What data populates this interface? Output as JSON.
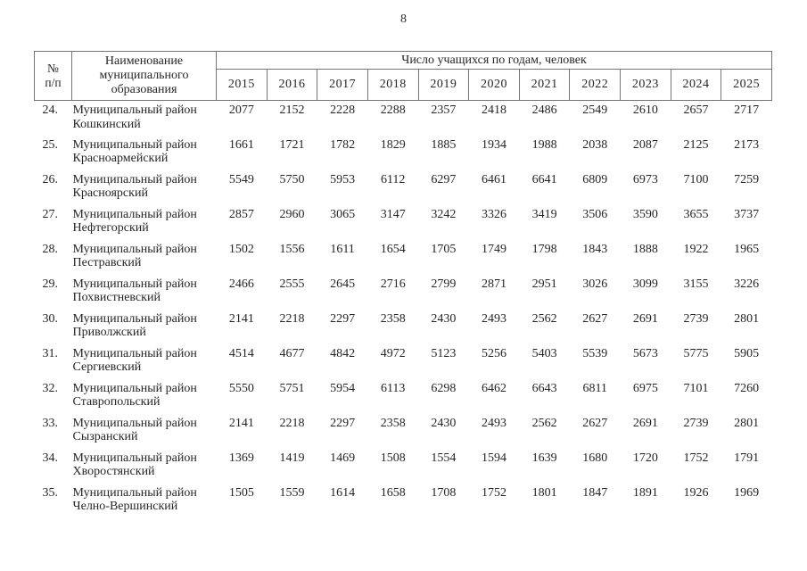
{
  "page": {
    "number": "8"
  },
  "table": {
    "header": {
      "col_num": "№\nп/п",
      "col_name": "Наименование муниципального образования",
      "col_group": "Число учащихся по годам, человек",
      "years": [
        "2015",
        "2016",
        "2017",
        "2018",
        "2019",
        "2020",
        "2021",
        "2022",
        "2023",
        "2024",
        "2025"
      ]
    },
    "rows": [
      {
        "num": "24.",
        "name": "Муниципальный район\nКошкинский",
        "values": [
          2077,
          2152,
          2228,
          2288,
          2357,
          2418,
          2486,
          2549,
          2610,
          2657,
          2717
        ]
      },
      {
        "num": "25.",
        "name": "Муниципальный район\nКрасноармейский",
        "values": [
          1661,
          1721,
          1782,
          1829,
          1885,
          1934,
          1988,
          2038,
          2087,
          2125,
          2173
        ]
      },
      {
        "num": "26.",
        "name": "Муниципальный район\nКрасноярский",
        "values": [
          5549,
          5750,
          5953,
          6112,
          6297,
          6461,
          6641,
          6809,
          6973,
          7100,
          7259
        ]
      },
      {
        "num": "27.",
        "name": "Муниципальный район\nНефтегорский",
        "values": [
          2857,
          2960,
          3065,
          3147,
          3242,
          3326,
          3419,
          3506,
          3590,
          3655,
          3737
        ]
      },
      {
        "num": "28.",
        "name": "Муниципальный район\nПестравский",
        "values": [
          1502,
          1556,
          1611,
          1654,
          1705,
          1749,
          1798,
          1843,
          1888,
          1922,
          1965
        ]
      },
      {
        "num": "29.",
        "name": "Муниципальный район\nПохвистневский",
        "values": [
          2466,
          2555,
          2645,
          2716,
          2799,
          2871,
          2951,
          3026,
          3099,
          3155,
          3226
        ]
      },
      {
        "num": "30.",
        "name": "Муниципальный район\nПриволжский",
        "values": [
          2141,
          2218,
          2297,
          2358,
          2430,
          2493,
          2562,
          2627,
          2691,
          2739,
          2801
        ]
      },
      {
        "num": "31.",
        "name": "Муниципальный район\nСергиевский",
        "values": [
          4514,
          4677,
          4842,
          4972,
          5123,
          5256,
          5403,
          5539,
          5673,
          5775,
          5905
        ]
      },
      {
        "num": "32.",
        "name": "Муниципальный район\nСтавропольский",
        "values": [
          5550,
          5751,
          5954,
          6113,
          6298,
          6462,
          6643,
          6811,
          6975,
          7101,
          7260
        ]
      },
      {
        "num": "33.",
        "name": "Муниципальный район\nСызранский",
        "values": [
          2141,
          2218,
          2297,
          2358,
          2430,
          2493,
          2562,
          2627,
          2691,
          2739,
          2801
        ]
      },
      {
        "num": "34.",
        "name": "Муниципальный район\nХворостянский",
        "values": [
          1369,
          1419,
          1469,
          1508,
          1554,
          1594,
          1639,
          1680,
          1720,
          1752,
          1791
        ]
      },
      {
        "num": "35.",
        "name": "Муниципальный район\nЧелно-Вершинский",
        "values": [
          1505,
          1559,
          1614,
          1658,
          1708,
          1752,
          1801,
          1847,
          1891,
          1926,
          1969
        ]
      }
    ]
  }
}
